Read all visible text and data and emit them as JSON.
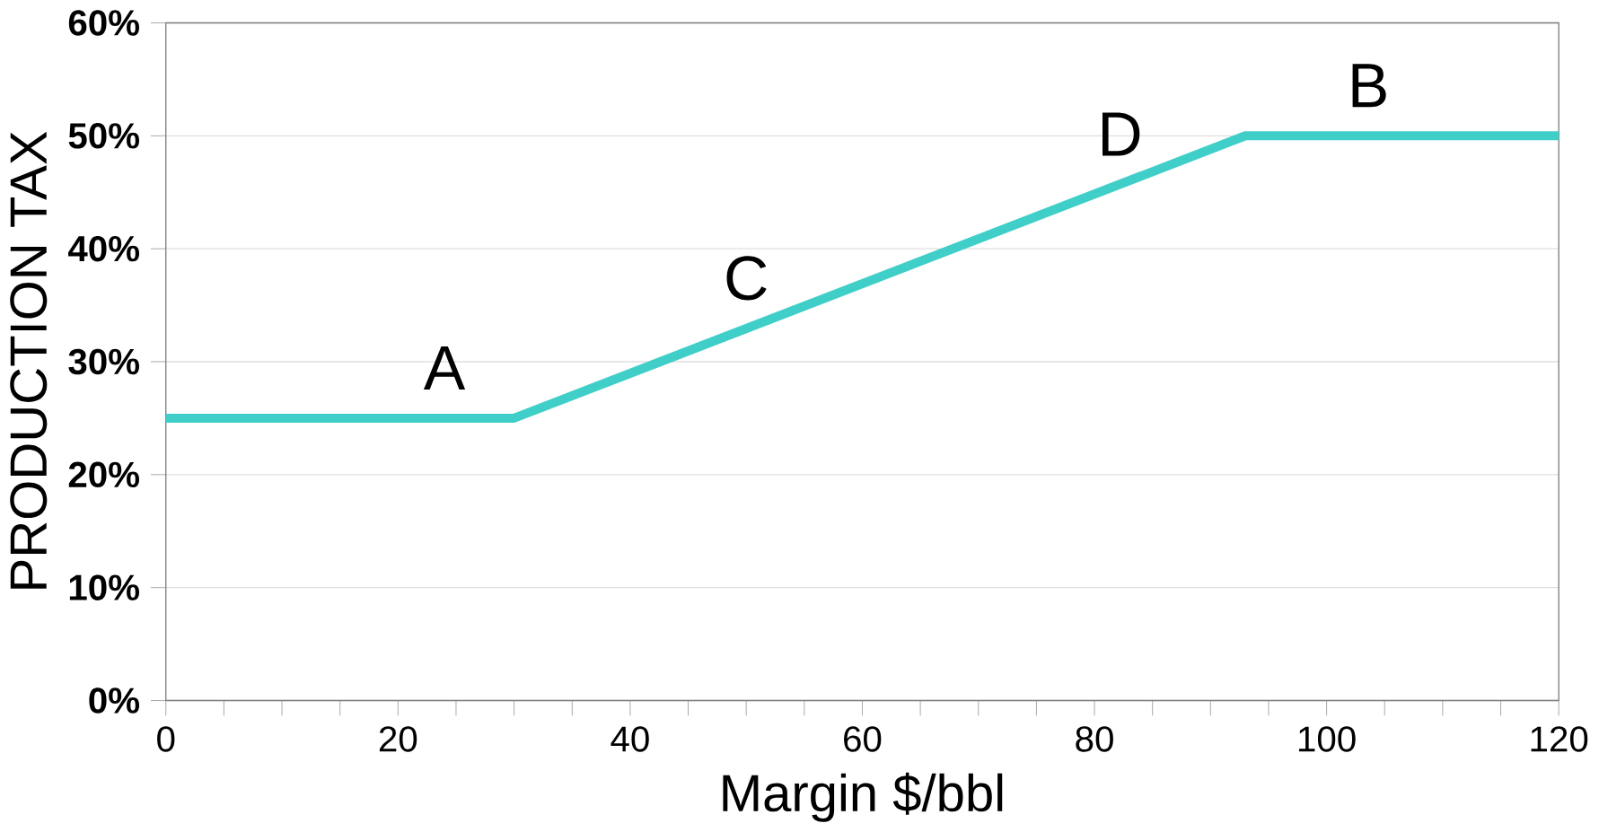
{
  "chart_data": {
    "type": "line",
    "xlabel": "Margin $/bbl",
    "ylabel": "PRODUCTION TAX",
    "x": [
      0,
      30,
      93,
      120
    ],
    "series": [
      {
        "color": "#40cfc8",
        "values": [
          25,
          25,
          50,
          50
        ]
      }
    ],
    "xlim": [
      0,
      120
    ],
    "ylim": [
      0,
      60
    ],
    "xticks": [
      0,
      20,
      40,
      60,
      80,
      100,
      120
    ],
    "yticks": [
      {
        "value": 0,
        "label": "0%"
      },
      {
        "value": 10,
        "label": "10%"
      },
      {
        "value": 20,
        "label": "20%"
      },
      {
        "value": 30,
        "label": "30%"
      },
      {
        "value": 40,
        "label": "40%"
      },
      {
        "value": 50,
        "label": "50%"
      },
      {
        "value": 60,
        "label": "60%"
      }
    ],
    "grid": "y",
    "marker": "none",
    "line_style": "solid",
    "annotations": [
      {
        "text": "A",
        "x": 24,
        "y": 25
      },
      {
        "text": "C",
        "x": 50,
        "y": 32.9
      },
      {
        "text": "D",
        "x": 82.2,
        "y": 45.7
      },
      {
        "text": "B",
        "x": 103.6,
        "y": 50
      }
    ]
  }
}
